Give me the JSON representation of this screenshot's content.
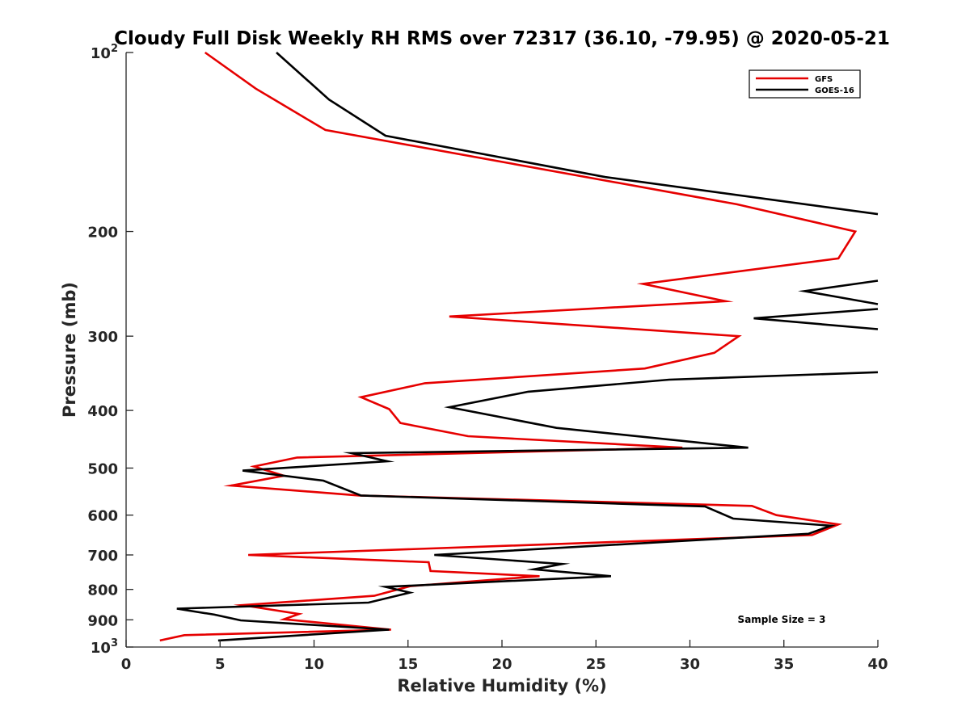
{
  "chart_data": {
    "type": "line",
    "title": "Cloudy Full Disk Weekly RH RMS over 72317 (36.10, -79.95) @ 2020-05-21",
    "xlabel": "Relative Humidity (%)",
    "ylabel": "Pressure (mb)",
    "xlim": [
      0,
      40
    ],
    "ylim": [
      100,
      1000
    ],
    "y_scale": "log",
    "y_reversed": true,
    "x_ticks": [
      "0",
      "5",
      "10",
      "15",
      "20",
      "25",
      "30",
      "35",
      "40"
    ],
    "y_ticks": [
      {
        "value": 100,
        "base": "10",
        "exp": "2"
      },
      {
        "value": 200,
        "label": "200"
      },
      {
        "value": 300,
        "label": "300"
      },
      {
        "value": 400,
        "label": "400"
      },
      {
        "value": 500,
        "label": "500"
      },
      {
        "value": 600,
        "label": "600"
      },
      {
        "value": 700,
        "label": "700"
      },
      {
        "value": 800,
        "label": "800"
      },
      {
        "value": 900,
        "label": "900"
      },
      {
        "value": 1000,
        "base": "10",
        "exp": "3"
      }
    ],
    "legend_position": "top-right",
    "annotation": "Sample Size = 3",
    "series": [
      {
        "name": "GFS",
        "color": "#e60000",
        "points": [
          [
            4.2,
            100
          ],
          [
            6.9,
            115
          ],
          [
            10.6,
            135
          ],
          [
            32.5,
            180
          ],
          [
            38.8,
            200
          ],
          [
            37.9,
            222
          ],
          [
            27.5,
            245
          ],
          [
            31.9,
            262
          ],
          [
            17.2,
            278
          ],
          [
            32.6,
            300
          ],
          [
            31.3,
            320
          ],
          [
            27.6,
            340
          ],
          [
            15.9,
            360
          ],
          [
            12.5,
            380
          ],
          [
            14.0,
            398
          ],
          [
            14.6,
            420
          ],
          [
            18.2,
            442
          ],
          [
            29.6,
            462
          ],
          [
            9.1,
            480
          ],
          [
            6.8,
            497
          ],
          [
            8.4,
            515
          ],
          [
            5.6,
            535
          ],
          [
            12.4,
            556
          ],
          [
            33.3,
            579
          ],
          [
            34.6,
            600
          ],
          [
            37.9,
            622
          ],
          [
            36.5,
            648
          ],
          [
            6.5,
            700
          ],
          [
            16.1,
            720
          ],
          [
            16.2,
            745
          ],
          [
            22.0,
            760
          ],
          [
            15.1,
            790
          ],
          [
            13.2,
            820
          ],
          [
            6.2,
            850
          ],
          [
            9.2,
            880
          ],
          [
            8.4,
            898
          ],
          [
            14.1,
            935
          ],
          [
            3.1,
            955
          ],
          [
            1.8,
            975
          ]
        ]
      },
      {
        "name": "GOES-16",
        "color": "#000000",
        "segments": [
          [
            [
              8.0,
              100
            ],
            [
              10.8,
              120
            ],
            [
              13.8,
              138
            ],
            [
              25.5,
              162
            ],
            [
              40.0,
              187
            ]
          ],
          [
            [
              40.0,
              242
            ],
            [
              36.1,
              252
            ],
            [
              40.0,
              265
            ]
          ],
          [
            [
              40.0,
              270
            ],
            [
              33.4,
              280
            ],
            [
              40.0,
              292
            ]
          ],
          [
            [
              40.0,
              345
            ],
            [
              28.9,
              355
            ],
            [
              21.4,
              372
            ],
            [
              17.2,
              395
            ],
            [
              22.9,
              428
            ],
            [
              33.1,
              462
            ],
            [
              12.0,
              472
            ],
            [
              13.9,
              487
            ],
            [
              6.2,
              505
            ],
            [
              10.5,
              525
            ],
            [
              12.5,
              556
            ],
            [
              30.8,
              580
            ],
            [
              32.3,
              608
            ],
            [
              37.5,
              625
            ],
            [
              36.3,
              645
            ],
            [
              16.4,
              700
            ],
            [
              23.2,
              725
            ],
            [
              21.7,
              740
            ],
            [
              25.8,
              760
            ],
            [
              13.8,
              792
            ],
            [
              15.1,
              810
            ],
            [
              12.9,
              842
            ],
            [
              2.7,
              862
            ],
            [
              4.7,
              882
            ],
            [
              6.1,
              902
            ],
            [
              14.0,
              935
            ],
            [
              4.9,
              975
            ]
          ]
        ]
      }
    ]
  }
}
